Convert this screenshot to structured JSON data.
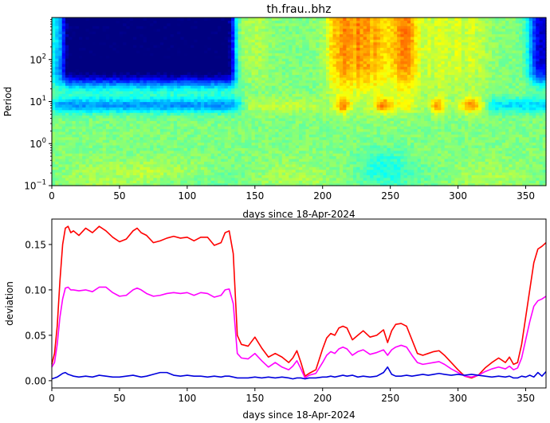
{
  "title": "th.frau..bhz",
  "chart_data": [
    {
      "type": "heatmap",
      "title": "th.frau..bhz",
      "xlabel": "days since 18-Apr-2024",
      "ylabel": "Period",
      "xlim": [
        0,
        365
      ],
      "ylim": [
        0.1,
        1000
      ],
      "yscale": "log",
      "colormap": "jet",
      "x_ticks": [
        "0",
        "50",
        "100",
        "150",
        "200",
        "250",
        "300",
        "350"
      ],
      "y_ticks": [
        {
          "base": "10",
          "exp": "−1"
        },
        {
          "base": "10",
          "exp": "0"
        },
        {
          "base": "10",
          "exp": "1"
        },
        {
          "base": "10",
          "exp": "2"
        }
      ],
      "x_tick_values": [
        0,
        50,
        100,
        150,
        200,
        250,
        300,
        350
      ],
      "y_tick_values": [
        0.1,
        1,
        10,
        100
      ]
    },
    {
      "type": "line",
      "xlabel": "days since 18-Apr-2024",
      "ylabel": "deviation",
      "xlim": [
        0,
        365
      ],
      "ylim": [
        -0.008,
        0.178
      ],
      "x_ticks": [
        "0",
        "50",
        "100",
        "150",
        "200",
        "250",
        "300",
        "350"
      ],
      "y_ticks": [
        "0.00",
        "0.05",
        "0.10",
        "0.15"
      ],
      "x_tick_values": [
        0,
        50,
        100,
        150,
        200,
        250,
        300,
        350
      ],
      "y_tick_values": [
        0,
        0.05,
        0.1,
        0.15
      ],
      "x": [
        0,
        2,
        4,
        6,
        8,
        10,
        12,
        14,
        16,
        20,
        25,
        30,
        35,
        40,
        45,
        50,
        55,
        60,
        63,
        66,
        70,
        75,
        80,
        85,
        90,
        95,
        100,
        105,
        110,
        115,
        120,
        125,
        128,
        131,
        134,
        137,
        140,
        145,
        150,
        155,
        160,
        165,
        170,
        175,
        178,
        181,
        184,
        187,
        190,
        195,
        200,
        203,
        206,
        209,
        212,
        215,
        218,
        222,
        226,
        230,
        235,
        240,
        245,
        248,
        251,
        254,
        258,
        262,
        266,
        270,
        274,
        278,
        282,
        286,
        290,
        295,
        300,
        305,
        310,
        315,
        320,
        325,
        330,
        335,
        338,
        341,
        344,
        347,
        350,
        353,
        356,
        359,
        362,
        365
      ],
      "series": [
        {
          "color": "#ff0000",
          "values": [
            0.018,
            0.03,
            0.06,
            0.11,
            0.15,
            0.168,
            0.17,
            0.163,
            0.165,
            0.16,
            0.168,
            0.163,
            0.17,
            0.165,
            0.158,
            0.153,
            0.156,
            0.165,
            0.168,
            0.163,
            0.16,
            0.152,
            0.154,
            0.157,
            0.159,
            0.157,
            0.158,
            0.154,
            0.158,
            0.158,
            0.149,
            0.152,
            0.163,
            0.165,
            0.14,
            0.05,
            0.04,
            0.038,
            0.048,
            0.036,
            0.026,
            0.03,
            0.026,
            0.02,
            0.025,
            0.033,
            0.02,
            0.005,
            0.008,
            0.012,
            0.035,
            0.047,
            0.052,
            0.05,
            0.058,
            0.06,
            0.058,
            0.045,
            0.05,
            0.055,
            0.048,
            0.05,
            0.056,
            0.042,
            0.055,
            0.062,
            0.063,
            0.06,
            0.045,
            0.03,
            0.028,
            0.03,
            0.032,
            0.033,
            0.028,
            0.02,
            0.012,
            0.005,
            0.003,
            0.006,
            0.014,
            0.02,
            0.025,
            0.02,
            0.026,
            0.018,
            0.02,
            0.04,
            0.07,
            0.1,
            0.13,
            0.145,
            0.148,
            0.152
          ]
        },
        {
          "color": "#ff00ff",
          "values": [
            0.015,
            0.02,
            0.04,
            0.07,
            0.09,
            0.102,
            0.103,
            0.1,
            0.1,
            0.099,
            0.1,
            0.098,
            0.103,
            0.103,
            0.097,
            0.093,
            0.094,
            0.1,
            0.102,
            0.1,
            0.096,
            0.093,
            0.094,
            0.096,
            0.097,
            0.096,
            0.097,
            0.094,
            0.097,
            0.096,
            0.092,
            0.094,
            0.1,
            0.101,
            0.085,
            0.03,
            0.025,
            0.024,
            0.03,
            0.022,
            0.015,
            0.02,
            0.015,
            0.012,
            0.016,
            0.022,
            0.013,
            0.003,
            0.006,
            0.008,
            0.02,
            0.028,
            0.032,
            0.03,
            0.035,
            0.037,
            0.035,
            0.028,
            0.032,
            0.034,
            0.029,
            0.031,
            0.034,
            0.028,
            0.034,
            0.037,
            0.039,
            0.037,
            0.028,
            0.02,
            0.018,
            0.019,
            0.02,
            0.021,
            0.018,
            0.013,
            0.009,
            0.005,
            0.004,
            0.006,
            0.01,
            0.013,
            0.015,
            0.013,
            0.016,
            0.012,
            0.014,
            0.025,
            0.045,
            0.065,
            0.082,
            0.088,
            0.09,
            0.093
          ]
        },
        {
          "color": "#0000dd",
          "values": [
            0.002,
            0.003,
            0.004,
            0.006,
            0.008,
            0.009,
            0.007,
            0.006,
            0.005,
            0.004,
            0.005,
            0.004,
            0.006,
            0.005,
            0.004,
            0.004,
            0.005,
            0.006,
            0.005,
            0.004,
            0.005,
            0.007,
            0.009,
            0.009,
            0.006,
            0.005,
            0.006,
            0.005,
            0.005,
            0.004,
            0.005,
            0.004,
            0.005,
            0.005,
            0.004,
            0.003,
            0.003,
            0.003,
            0.004,
            0.003,
            0.004,
            0.003,
            0.004,
            0.003,
            0.002,
            0.003,
            0.003,
            0.002,
            0.003,
            0.003,
            0.004,
            0.004,
            0.005,
            0.004,
            0.005,
            0.006,
            0.005,
            0.006,
            0.004,
            0.005,
            0.004,
            0.005,
            0.009,
            0.015,
            0.007,
            0.005,
            0.005,
            0.006,
            0.005,
            0.006,
            0.007,
            0.006,
            0.007,
            0.008,
            0.007,
            0.006,
            0.007,
            0.006,
            0.007,
            0.006,
            0.005,
            0.004,
            0.005,
            0.004,
            0.005,
            0.003,
            0.003,
            0.005,
            0.004,
            0.006,
            0.004,
            0.009,
            0.005,
            0.01
          ]
        }
      ]
    }
  ]
}
